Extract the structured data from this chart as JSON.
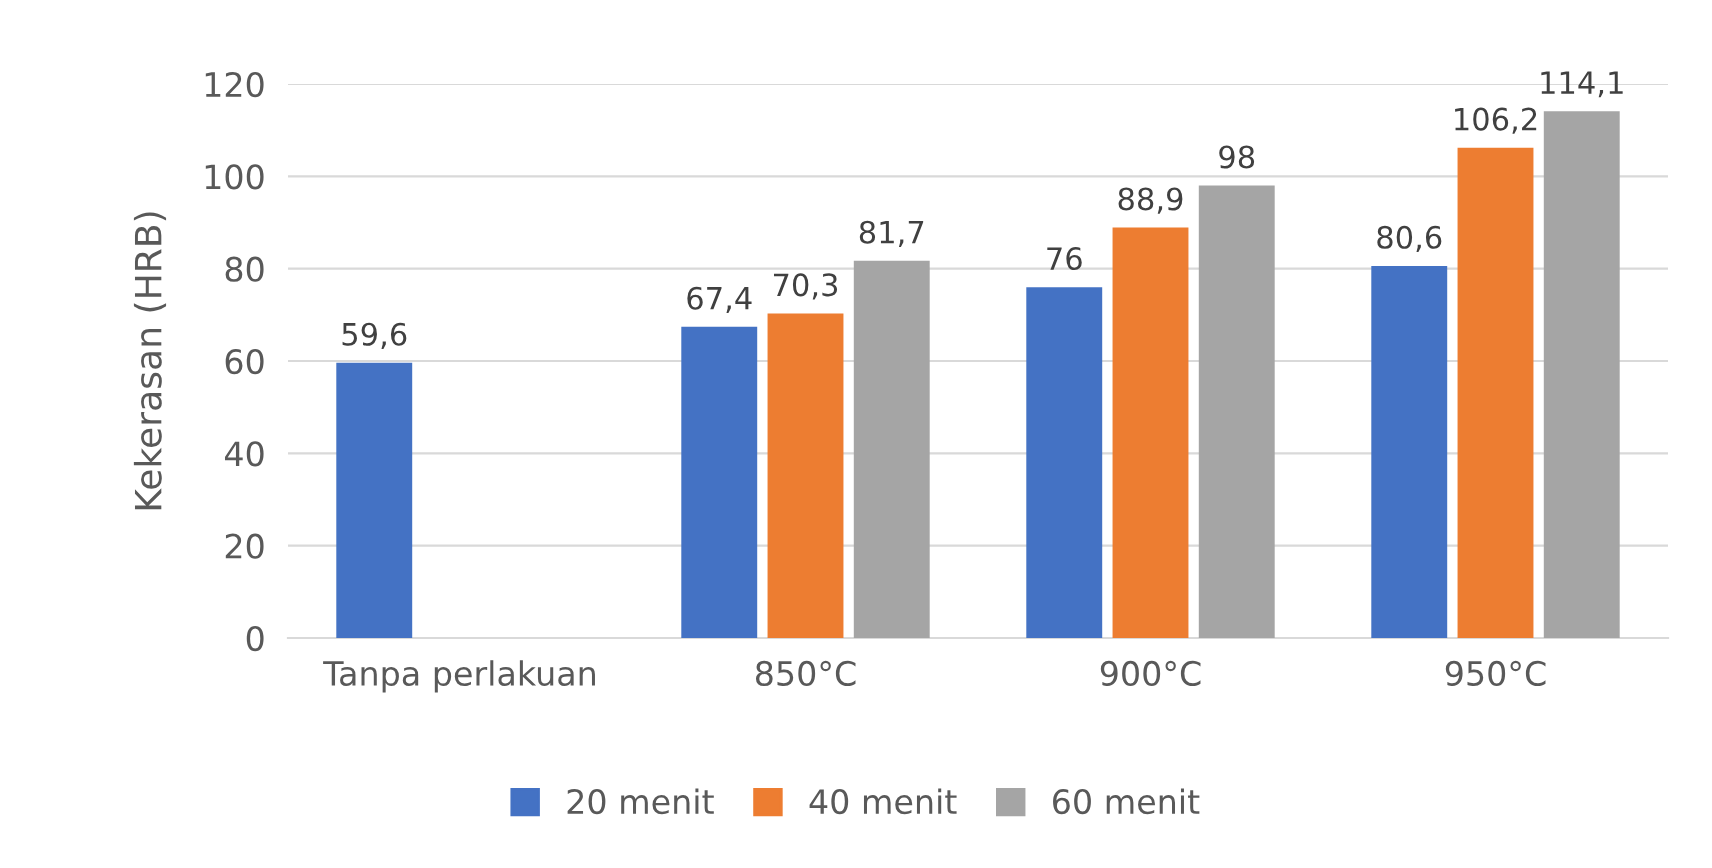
{
  "chart_data": {
    "type": "bar",
    "ylabel": "Kekerasan (HRB)",
    "categories": [
      "Tanpa perlakuan",
      "850°C",
      "900°C",
      "950°C"
    ],
    "series": [
      {
        "name": "20 menit",
        "color": "#4472c4",
        "values": [
          59.6,
          67.4,
          76,
          80.6
        ],
        "value_labels": [
          "59,6",
          "67,4",
          "76",
          "80,6"
        ]
      },
      {
        "name": "40 menit",
        "color": "#ed7d31",
        "values": [
          null,
          70.3,
          88.9,
          106.2
        ],
        "value_labels": [
          null,
          "70,3",
          "88,9",
          "106,2"
        ]
      },
      {
        "name": "60 menit",
        "color": "#a5a5a5",
        "values": [
          null,
          81.7,
          98,
          114.1
        ],
        "value_labels": [
          null,
          "81,7",
          "98",
          "114,1"
        ]
      }
    ],
    "ylim": [
      0,
      120
    ],
    "yticks": [
      0,
      20,
      40,
      60,
      80,
      100,
      120
    ],
    "grid": "y",
    "legend": "bottom"
  }
}
